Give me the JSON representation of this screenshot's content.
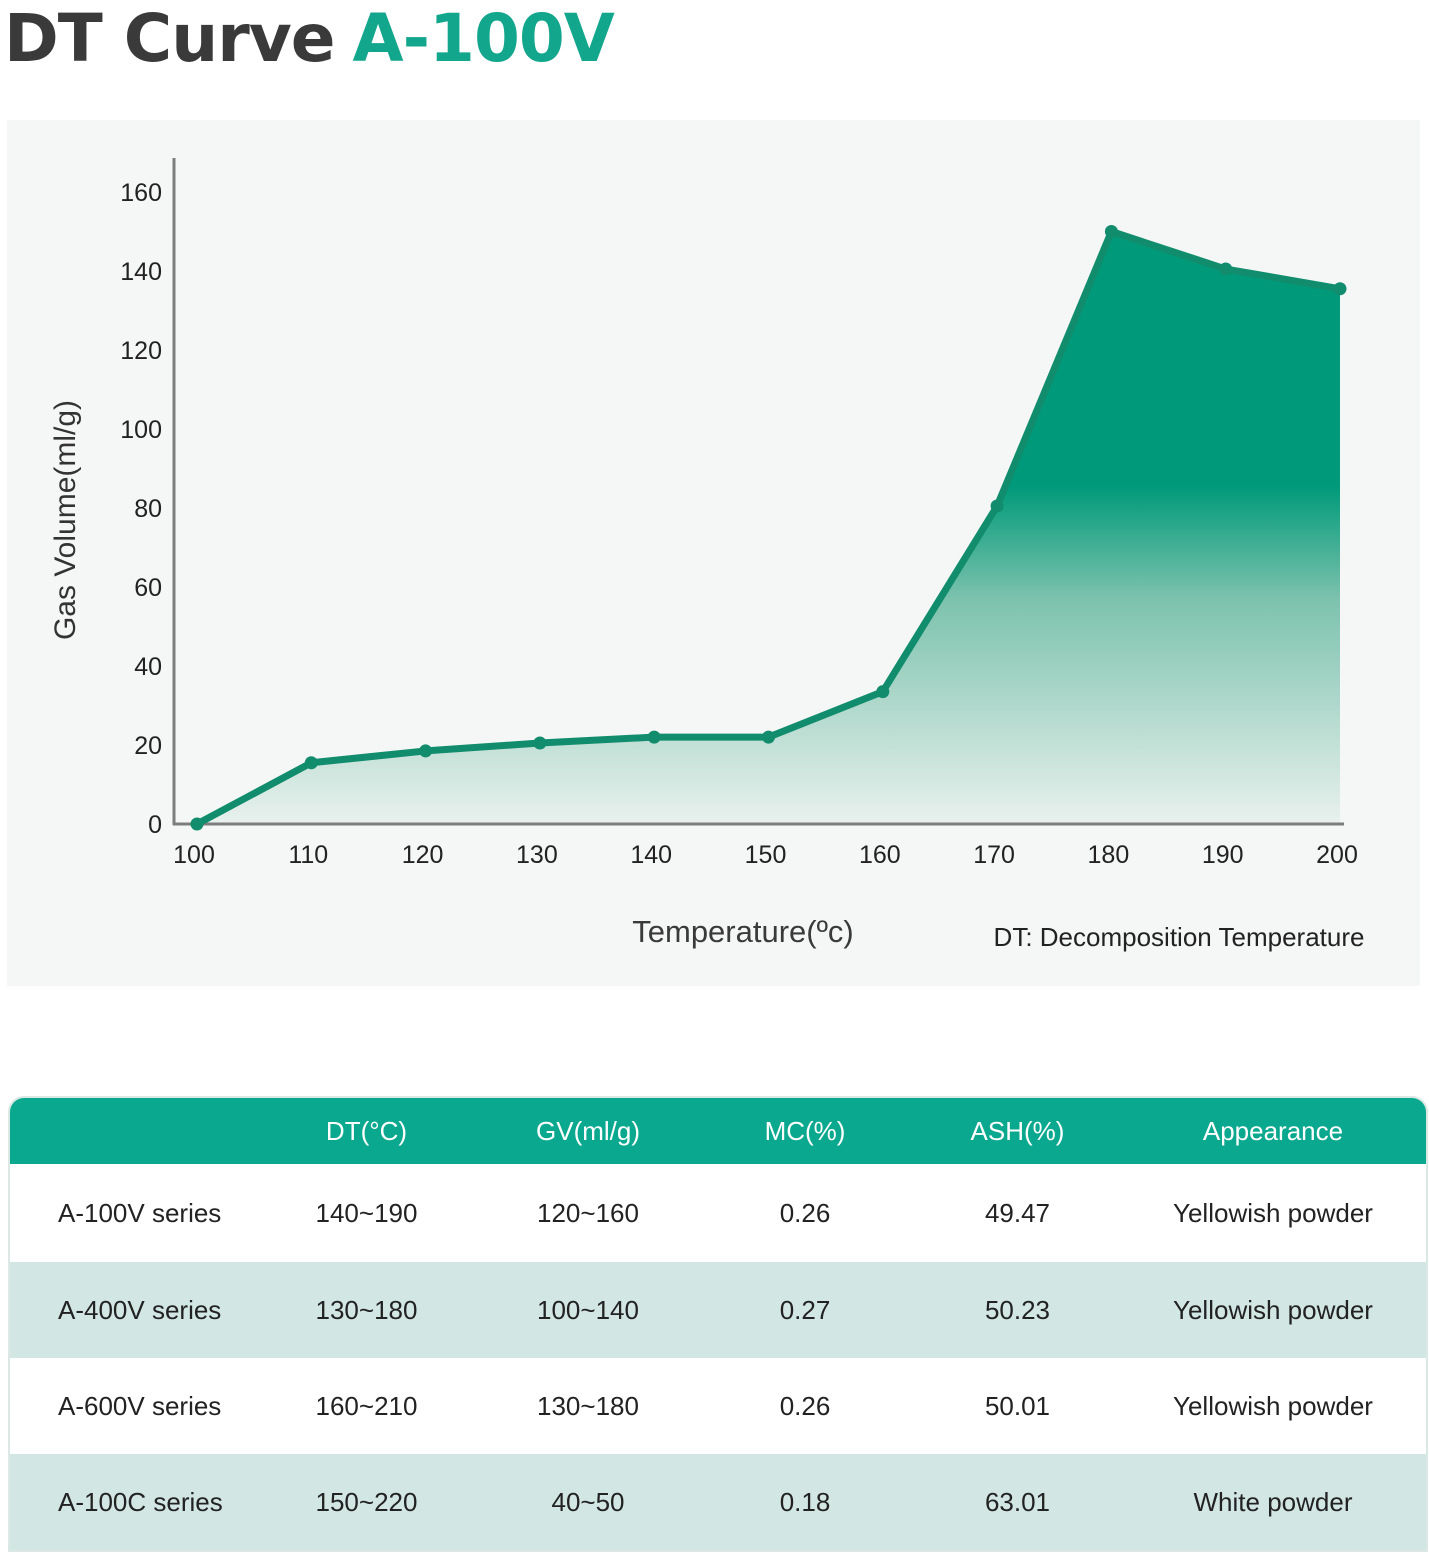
{
  "header": {
    "title_main": "DT Curve",
    "title_model": "A-100V"
  },
  "chart_data": {
    "type": "area",
    "title": "DT Curve A-100V",
    "xlabel": "Temperature(ºc)",
    "ylabel": "Gas Volume(ml/g)",
    "x": [
      100,
      110,
      120,
      130,
      140,
      150,
      160,
      170,
      180,
      190,
      200
    ],
    "series": [
      {
        "name": "A-100V",
        "values": [
          0,
          15.5,
          18.5,
          20.5,
          22,
          22,
          33.5,
          80.5,
          150,
          140.5,
          135.5
        ]
      }
    ],
    "xlim": [
      100,
      200
    ],
    "ylim": [
      0,
      160
    ],
    "xticks": [
      "100",
      "110",
      "120",
      "130",
      "140",
      "150",
      "160",
      "170",
      "180",
      "190",
      "200"
    ],
    "yticks": [
      "0",
      "20",
      "40",
      "60",
      "80",
      "100",
      "120",
      "140",
      "160"
    ],
    "annotation": "DT: Decomposition Temperature",
    "grid": false,
    "colors": {
      "line": "#118d6d",
      "fill_top": "#009a7a",
      "fill_bottom": "#e9f1ee"
    }
  },
  "table": {
    "headers": [
      "",
      "DT(°C)",
      "GV(ml/g)",
      "MC(%)",
      "ASH(%)",
      "Appearance"
    ],
    "rows": [
      [
        "A-100V series",
        "140~190",
        "120~160",
        "0.26",
        "49.47",
        "Yellowish powder"
      ],
      [
        "A-400V series",
        "130~180",
        "100~140",
        "0.27",
        "50.23",
        "Yellowish powder"
      ],
      [
        "A-600V series",
        "160~210",
        "130~180",
        "0.26",
        "50.01",
        "Yellowish powder"
      ],
      [
        "A-100C series",
        "150~220",
        "40~50",
        "0.18",
        "63.01",
        "White powder"
      ]
    ],
    "colors": {
      "header_bg": "#0aa88f",
      "stripe": "#d2e7e3"
    }
  }
}
